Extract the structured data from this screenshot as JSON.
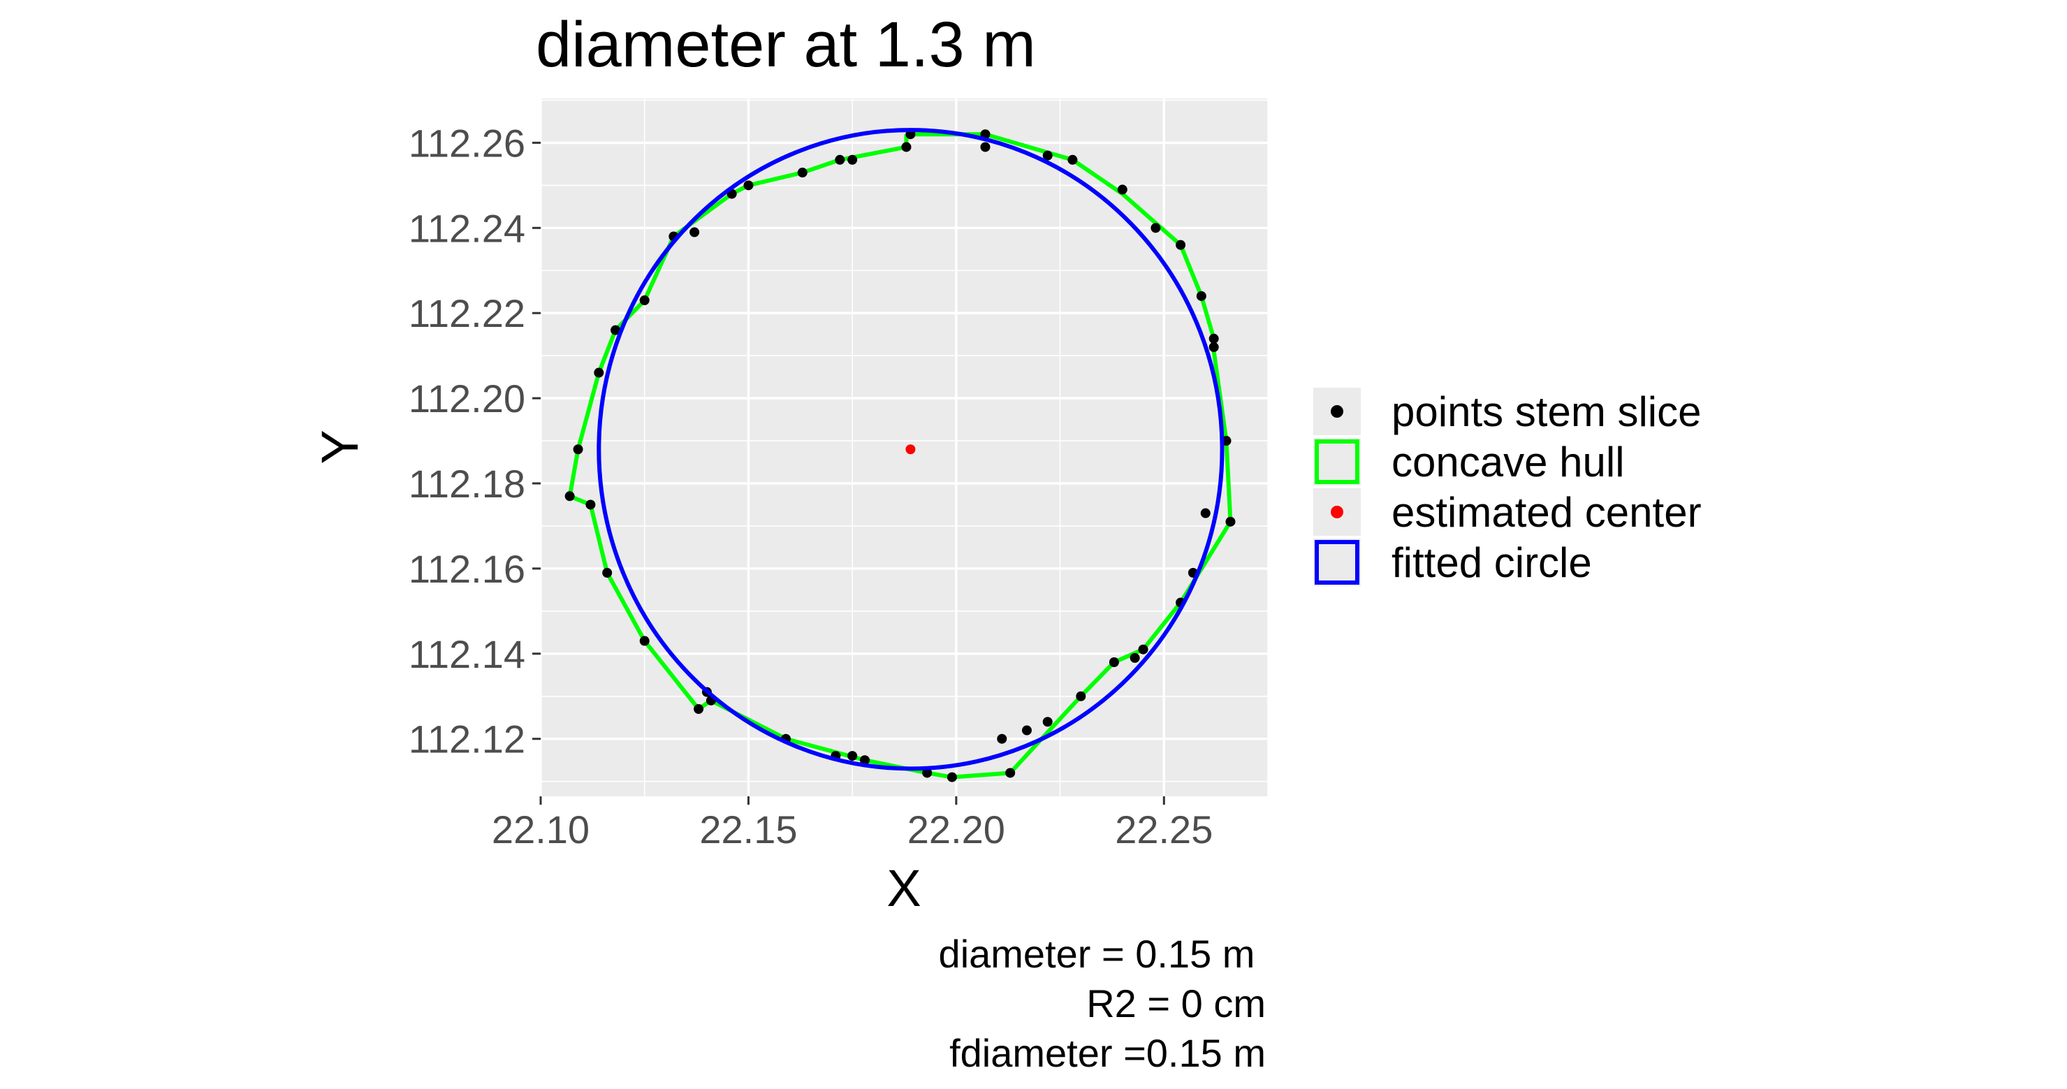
{
  "chart_data": {
    "type": "scatter",
    "title": "diameter at 1.3 m",
    "xlabel": "X",
    "ylabel": "Y",
    "xlim": [
      22.1,
      22.275
    ],
    "ylim": [
      112.1065,
      112.2704
    ],
    "x_ticks": [
      22.1,
      22.15,
      22.2,
      22.25
    ],
    "x_tick_labels": [
      "22.10",
      "22.15",
      "22.20",
      "22.25"
    ],
    "y_ticks": [
      112.12,
      112.14,
      112.16,
      112.18,
      112.2,
      112.22,
      112.24,
      112.26
    ],
    "y_tick_labels": [
      "112.12",
      "112.14",
      "112.16",
      "112.18",
      "112.20",
      "112.22",
      "112.24",
      "112.26"
    ],
    "grid": true,
    "legend_position": "right",
    "legend": [
      {
        "label": "points stem slice",
        "symbol": "point",
        "color": "#000000"
      },
      {
        "label": "concave hull",
        "symbol": "box",
        "color": "#00ff00"
      },
      {
        "label": "estimated center",
        "symbol": "point",
        "color": "#ff0000"
      },
      {
        "label": "fitted circle",
        "symbol": "box",
        "color": "#0000ff"
      }
    ],
    "series": [
      {
        "name": "points stem slice",
        "color": "#000000",
        "points": [
          [
            22.189,
            112.262
          ],
          [
            22.207,
            112.262
          ],
          [
            22.207,
            112.259
          ],
          [
            22.188,
            112.259
          ],
          [
            22.175,
            112.256
          ],
          [
            22.172,
            112.256
          ],
          [
            22.163,
            112.253
          ],
          [
            22.15,
            112.25
          ],
          [
            22.146,
            112.248
          ],
          [
            22.132,
            112.238
          ],
          [
            22.137,
            112.239
          ],
          [
            22.125,
            112.223
          ],
          [
            22.118,
            112.216
          ],
          [
            22.114,
            112.206
          ],
          [
            22.109,
            112.188
          ],
          [
            22.107,
            112.177
          ],
          [
            22.112,
            112.175
          ],
          [
            22.116,
            112.159
          ],
          [
            22.125,
            112.143
          ],
          [
            22.14,
            112.131
          ],
          [
            22.141,
            112.129
          ],
          [
            22.138,
            112.127
          ],
          [
            22.159,
            112.12
          ],
          [
            22.171,
            112.116
          ],
          [
            22.175,
            112.116
          ],
          [
            22.178,
            112.115
          ],
          [
            22.193,
            112.112
          ],
          [
            22.199,
            112.111
          ],
          [
            22.211,
            112.12
          ],
          [
            22.213,
            112.112
          ],
          [
            22.217,
            112.122
          ],
          [
            22.222,
            112.124
          ],
          [
            22.23,
            112.13
          ],
          [
            22.238,
            112.138
          ],
          [
            22.243,
            112.139
          ],
          [
            22.245,
            112.141
          ],
          [
            22.254,
            112.152
          ],
          [
            22.257,
            112.159
          ],
          [
            22.26,
            112.173
          ],
          [
            22.266,
            112.171
          ],
          [
            22.265,
            112.19
          ],
          [
            22.262,
            112.212
          ],
          [
            22.262,
            112.214
          ],
          [
            22.259,
            112.224
          ],
          [
            22.254,
            112.236
          ],
          [
            22.248,
            112.24
          ],
          [
            22.24,
            112.249
          ],
          [
            22.228,
            112.256
          ],
          [
            22.222,
            112.257
          ]
        ]
      },
      {
        "name": "concave hull",
        "color": "#00ff00",
        "points": [
          [
            22.188,
            112.262
          ],
          [
            22.207,
            112.262
          ],
          [
            22.228,
            112.256
          ],
          [
            22.24,
            112.248
          ],
          [
            22.254,
            112.236
          ],
          [
            22.259,
            112.224
          ],
          [
            22.262,
            112.214
          ],
          [
            22.262,
            112.211
          ],
          [
            22.265,
            112.19
          ],
          [
            22.266,
            112.171
          ],
          [
            22.254,
            112.152
          ],
          [
            22.245,
            112.141
          ],
          [
            22.238,
            112.138
          ],
          [
            22.23,
            112.13
          ],
          [
            22.213,
            112.112
          ],
          [
            22.199,
            112.111
          ],
          [
            22.193,
            112.112
          ],
          [
            22.178,
            112.115
          ],
          [
            22.159,
            112.12
          ],
          [
            22.141,
            112.129
          ],
          [
            22.138,
            112.127
          ],
          [
            22.125,
            112.143
          ],
          [
            22.116,
            112.159
          ],
          [
            22.112,
            112.175
          ],
          [
            22.107,
            112.177
          ],
          [
            22.109,
            112.188
          ],
          [
            22.114,
            112.206
          ],
          [
            22.118,
            112.216
          ],
          [
            22.125,
            112.223
          ],
          [
            22.132,
            112.238
          ],
          [
            22.146,
            112.248
          ],
          [
            22.15,
            112.25
          ],
          [
            22.163,
            112.253
          ],
          [
            22.172,
            112.256
          ],
          [
            22.188,
            112.259
          ],
          [
            22.188,
            112.262
          ]
        ]
      },
      {
        "name": "estimated center",
        "color": "#ff0000",
        "points": [
          [
            22.189,
            112.188
          ]
        ]
      },
      {
        "name": "fitted circle",
        "color": "#0000ff",
        "center": [
          22.189,
          112.188
        ],
        "radius": 0.075
      }
    ],
    "annotations": [
      "diameter = 0.15 m ",
      "R2 = 0 cm",
      "fdiameter =0.15 m"
    ]
  }
}
